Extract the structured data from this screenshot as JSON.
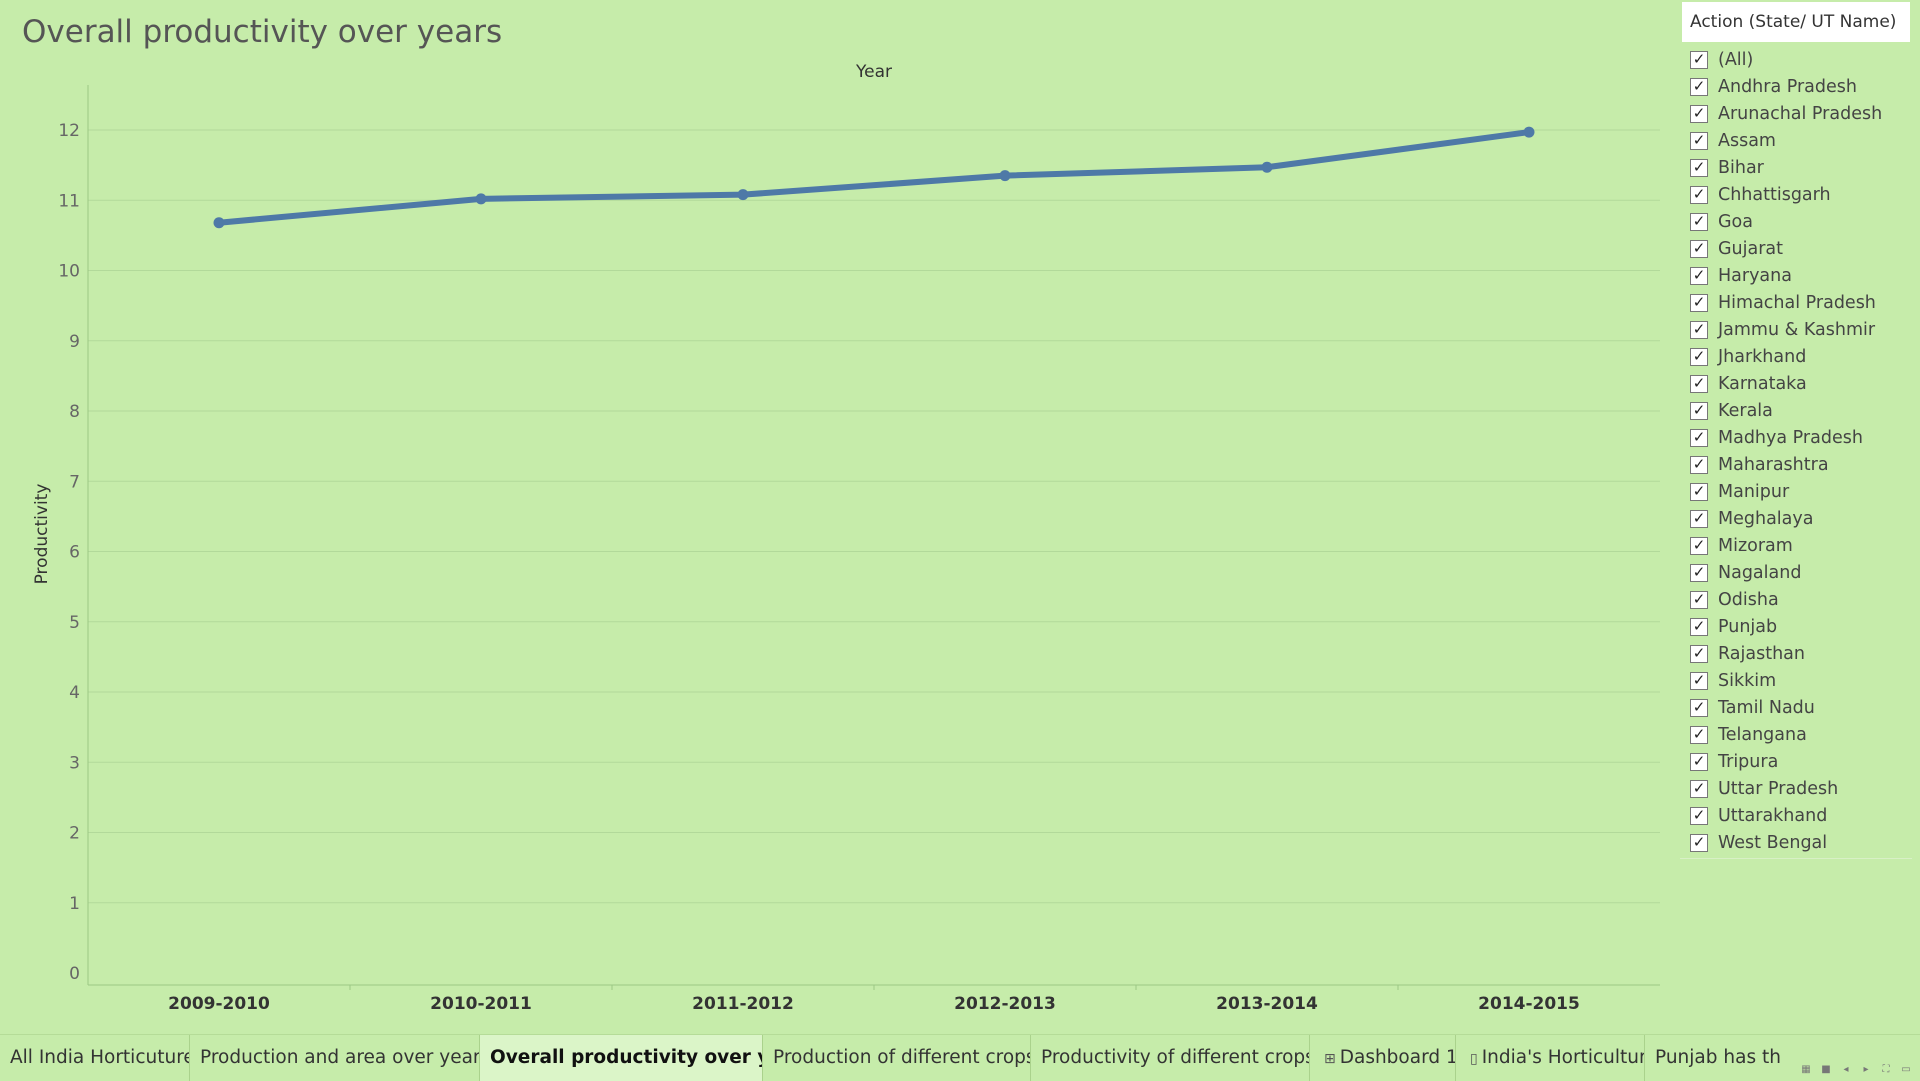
{
  "chart_data": {
    "type": "line",
    "title": "Overall productivity over years",
    "xlabel": "Year",
    "ylabel": "Productivity",
    "categories": [
      "2009-2010",
      "2010-2011",
      "2011-2012",
      "2012-2013",
      "2013-2014",
      "2014-2015"
    ],
    "series": [
      {
        "values": [
          10.68,
          11.02,
          11.08,
          11.35,
          11.47,
          11.97
        ]
      }
    ],
    "ylim": [
      0,
      12
    ],
    "yticks": [
      "0",
      "1",
      "2",
      "3",
      "4",
      "5",
      "6",
      "7",
      "8",
      "9",
      "10",
      "11",
      "12"
    ],
    "grid": true,
    "colors": {
      "line": "#4e79a7",
      "background": "#c6ecaa",
      "gridline": "#b2d99a"
    }
  },
  "filter": {
    "title": "Action (State/ UT Name)",
    "check_glyph": "✓",
    "items": [
      "(All)",
      "Andhra Pradesh",
      "Arunachal Pradesh",
      "Assam",
      "Bihar",
      "Chhattisgarh",
      "Goa",
      "Gujarat",
      "Haryana",
      "Himachal Pradesh",
      "Jammu & Kashmir",
      "Jharkhand",
      "Karnataka",
      "Kerala",
      "Madhya Pradesh",
      "Maharashtra",
      "Manipur",
      "Meghalaya",
      "Mizoram",
      "Nagaland",
      "Odisha",
      "Punjab",
      "Rajasthan",
      "Sikkim",
      "Tamil Nadu",
      "Telangana",
      "Tripura",
      "Uttar Pradesh",
      "Uttarakhand",
      "West Bengal"
    ]
  },
  "tabs": [
    {
      "label": "All India Horticuture",
      "icon": "",
      "active": false
    },
    {
      "label": "Production and area over years",
      "icon": "",
      "active": false
    },
    {
      "label": "Overall productivity over years",
      "icon": "",
      "active": true
    },
    {
      "label": "Production of different crops",
      "icon": "",
      "active": false
    },
    {
      "label": "Productivity of different crops",
      "icon": "",
      "active": false
    },
    {
      "label": "Dashboard 1",
      "icon": "dashboard-icon",
      "active": false
    },
    {
      "label": "India's Horticulture",
      "icon": "story-icon",
      "active": false
    },
    {
      "label": "Punjab has th",
      "icon": "",
      "active": false
    }
  ]
}
